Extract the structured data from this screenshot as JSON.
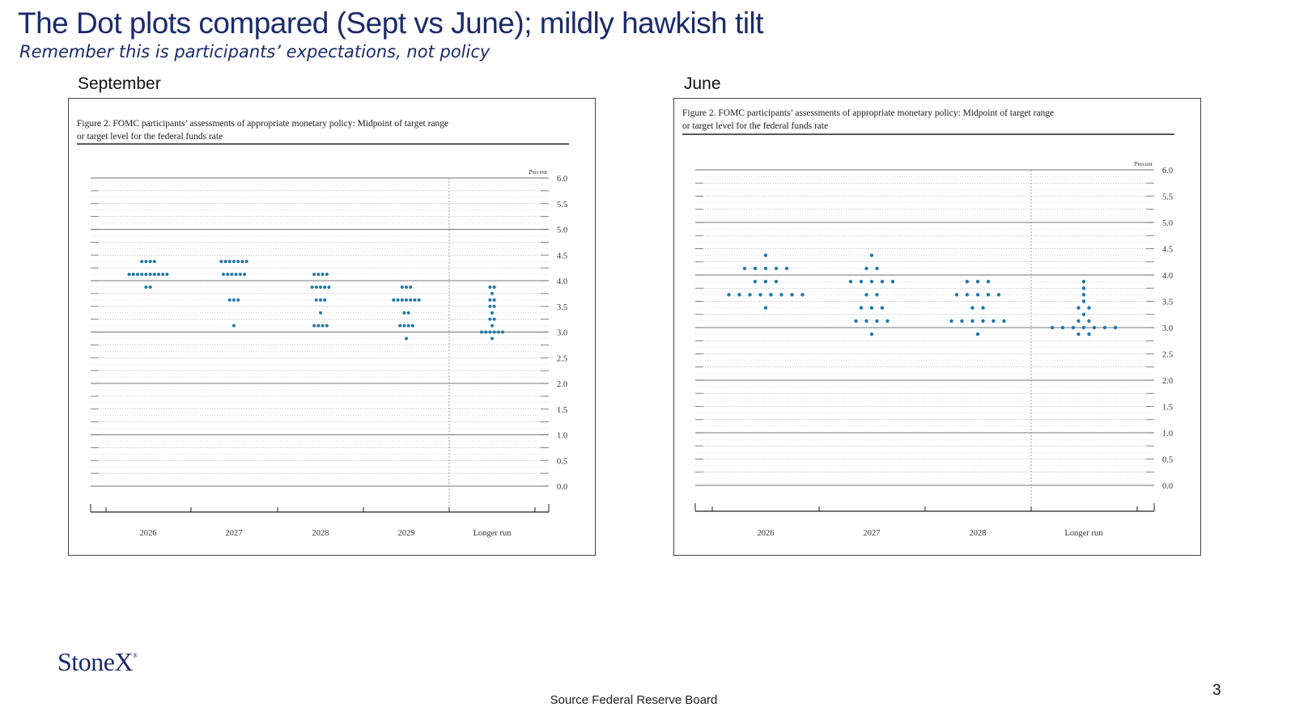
{
  "slide": {
    "title": "The Dot plots compared (Sept vs June); mildly hawkish tilt",
    "subtitle": "Remember this is participants’ expectations, not policy",
    "source": "Source Federal Reserve Board",
    "page_number": "3",
    "logo_text": "StoneX",
    "logo_mark": "®",
    "title_color": "#1b2a6b",
    "dot_color": "#1f78a8"
  },
  "panels": {
    "september": {
      "label": "September"
    },
    "june": {
      "label": "June"
    }
  },
  "chart_data": [
    {
      "type": "scatter",
      "panel": "september",
      "caption_lines": [
        "Figure 2. FOMC participants’ assessments of appropriate monetary policy: Midpoint of target range",
        "or target level for the federal funds rate"
      ],
      "ylabel": "Percent",
      "ylim": [
        0,
        6.0
      ],
      "yticks": [
        "6.0",
        "5.5",
        "5.0",
        "4.5",
        "4.0",
        "3.5",
        "3.0",
        "2.5",
        "2.0",
        "1.5",
        "1.0",
        "0.5",
        "0.0"
      ],
      "categories": [
        "2026",
        "2027",
        "2028",
        "2029",
        "Longer run"
      ],
      "grid": true,
      "dots": [
        {
          "category": "2026",
          "counts": [
            [
              4.375,
              4
            ],
            [
              4.125,
              10
            ],
            [
              3.875,
              2
            ]
          ]
        },
        {
          "category": "2027",
          "counts": [
            [
              4.375,
              7
            ],
            [
              4.125,
              6
            ],
            [
              3.625,
              3
            ],
            [
              3.125,
              1
            ]
          ]
        },
        {
          "category": "2028",
          "counts": [
            [
              4.125,
              4
            ],
            [
              3.875,
              5
            ],
            [
              3.625,
              3
            ],
            [
              3.375,
              1
            ],
            [
              3.125,
              4
            ]
          ]
        },
        {
          "category": "2029",
          "counts": [
            [
              3.875,
              3
            ],
            [
              3.625,
              7
            ],
            [
              3.375,
              2
            ],
            [
              3.125,
              4
            ],
            [
              2.875,
              1
            ]
          ]
        },
        {
          "category": "Longer run",
          "counts": [
            [
              3.875,
              2
            ],
            [
              3.75,
              1
            ],
            [
              3.625,
              2
            ],
            [
              3.5,
              2
            ],
            [
              3.375,
              1
            ],
            [
              3.25,
              2
            ],
            [
              3.125,
              1
            ],
            [
              3.0,
              6
            ],
            [
              2.875,
              1
            ]
          ]
        }
      ]
    },
    {
      "type": "scatter",
      "panel": "june",
      "caption_lines": [
        "Figure 2. FOMC participants’ assessments of appropriate monetary policy: Midpoint of target range",
        "or target level for the federal funds rate"
      ],
      "ylabel": "Percent",
      "ylim": [
        0,
        6.0
      ],
      "yticks": [
        "6.0",
        "5.5",
        "5.0",
        "4.5",
        "4.0",
        "3.5",
        "3.0",
        "2.5",
        "2.0",
        "1.5",
        "1.0",
        "0.5",
        "0.0"
      ],
      "categories": [
        "2026",
        "2027",
        "2028",
        "Longer run"
      ],
      "grid": true,
      "dots": [
        {
          "category": "2026",
          "counts": [
            [
              4.375,
              1
            ],
            [
              4.125,
              5
            ],
            [
              3.875,
              3
            ],
            [
              3.625,
              8
            ],
            [
              3.375,
              1
            ]
          ]
        },
        {
          "category": "2027",
          "counts": [
            [
              4.375,
              1
            ],
            [
              4.125,
              2
            ],
            [
              3.875,
              5
            ],
            [
              3.625,
              2
            ],
            [
              3.375,
              3
            ],
            [
              3.125,
              4
            ],
            [
              2.875,
              1
            ]
          ]
        },
        {
          "category": "2028",
          "counts": [
            [
              3.875,
              3
            ],
            [
              3.625,
              5
            ],
            [
              3.375,
              2
            ],
            [
              3.125,
              6
            ],
            [
              2.875,
              1
            ]
          ]
        },
        {
          "category": "Longer run",
          "counts": [
            [
              3.875,
              1
            ],
            [
              3.75,
              1
            ],
            [
              3.625,
              1
            ],
            [
              3.5,
              1
            ],
            [
              3.375,
              2
            ],
            [
              3.25,
              1
            ],
            [
              3.125,
              2
            ],
            [
              3.0,
              7
            ],
            [
              2.875,
              2
            ]
          ]
        }
      ]
    }
  ]
}
